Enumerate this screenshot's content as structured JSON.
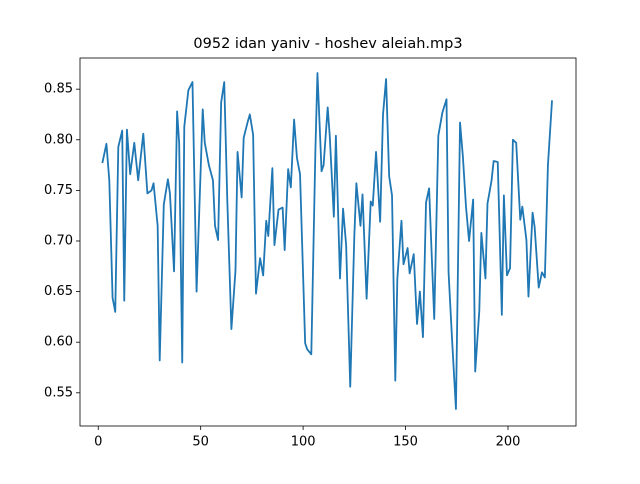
{
  "chart_data": {
    "type": "line",
    "title": "0952 idan yaniv - hoshev aleiah.mp3",
    "x": [
      2,
      4,
      5.4,
      7,
      8.3,
      9.8,
      11.7,
      12.7,
      14,
      15.6,
      17.6,
      19.5,
      22,
      24,
      26,
      27,
      29,
      30,
      32,
      34,
      35,
      37,
      38.5,
      39.5,
      41,
      42,
      44,
      46,
      48,
      49,
      51,
      52,
      54,
      56,
      57,
      58.5,
      60,
      61.5,
      63,
      65,
      67,
      68,
      70,
      71,
      73,
      74,
      75.6,
      77,
      79,
      80.5,
      82,
      83,
      85,
      86,
      88,
      90,
      91,
      92.7,
      94,
      95.6,
      97,
      98.5,
      101,
      102,
      104,
      106,
      107,
      109,
      110,
      112,
      113,
      115,
      116,
      118,
      119.5,
      121,
      123,
      125,
      126,
      128,
      129,
      131,
      133,
      134,
      135.6,
      137.6,
      139,
      140.5,
      142,
      143.4,
      145,
      146,
      148,
      149,
      151,
      152,
      154,
      155.6,
      157,
      158.5,
      160,
      161.5,
      163,
      164,
      166,
      168,
      170,
      171,
      172.7,
      174.6,
      176.6,
      178,
      179.5,
      181,
      183,
      184,
      186,
      187,
      189,
      190,
      192,
      193,
      195,
      197,
      198,
      199.5,
      201,
      202.4,
      204,
      206,
      207,
      209,
      210,
      212,
      213,
      215,
      216.6,
      218,
      219.5,
      221.5
    ],
    "series": [
      {
        "color": "#1f77b4",
        "values": [
          0.777,
          0.796,
          0.76,
          0.644,
          0.63,
          0.793,
          0.809,
          0.641,
          0.81,
          0.766,
          0.797,
          0.76,
          0.806,
          0.747,
          0.75,
          0.757,
          0.715,
          0.582,
          0.736,
          0.761,
          0.747,
          0.67,
          0.828,
          0.797,
          0.58,
          0.813,
          0.849,
          0.857,
          0.65,
          0.711,
          0.83,
          0.797,
          0.775,
          0.76,
          0.715,
          0.701,
          0.837,
          0.857,
          0.74,
          0.613,
          0.671,
          0.788,
          0.743,
          0.802,
          0.818,
          0.825,
          0.805,
          0.648,
          0.683,
          0.666,
          0.72,
          0.705,
          0.772,
          0.696,
          0.731,
          0.733,
          0.691,
          0.771,
          0.753,
          0.82,
          0.782,
          0.766,
          0.599,
          0.593,
          0.588,
          0.79,
          0.866,
          0.769,
          0.775,
          0.832,
          0.804,
          0.724,
          0.804,
          0.663,
          0.732,
          0.696,
          0.556,
          0.705,
          0.757,
          0.715,
          0.746,
          0.643,
          0.739,
          0.735,
          0.788,
          0.719,
          0.825,
          0.86,
          0.764,
          0.745,
          0.562,
          0.663,
          0.72,
          0.677,
          0.693,
          0.668,
          0.687,
          0.618,
          0.65,
          0.605,
          0.738,
          0.752,
          0.674,
          0.623,
          0.804,
          0.827,
          0.84,
          0.669,
          0.603,
          0.534,
          0.817,
          0.783,
          0.734,
          0.7,
          0.741,
          0.571,
          0.631,
          0.708,
          0.663,
          0.737,
          0.76,
          0.779,
          0.778,
          0.627,
          0.745,
          0.666,
          0.673,
          0.8,
          0.797,
          0.721,
          0.734,
          0.701,
          0.645,
          0.728,
          0.714,
          0.654,
          0.669,
          0.664,
          0.775,
          0.839
        ]
      }
    ],
    "xlim": [
      -8.9,
      233.2
    ],
    "ylim": [
      0.5172,
      0.8808
    ],
    "xticks": [
      0,
      50,
      100,
      150,
      200
    ],
    "yticks": [
      0.55,
      {
        "value": 0.6,
        "label": "0.60"
      },
      0.65,
      {
        "value": 0.7,
        "label": "0.70"
      },
      0.75,
      {
        "value": 0.8,
        "label": "0.80"
      },
      0.85
    ]
  }
}
